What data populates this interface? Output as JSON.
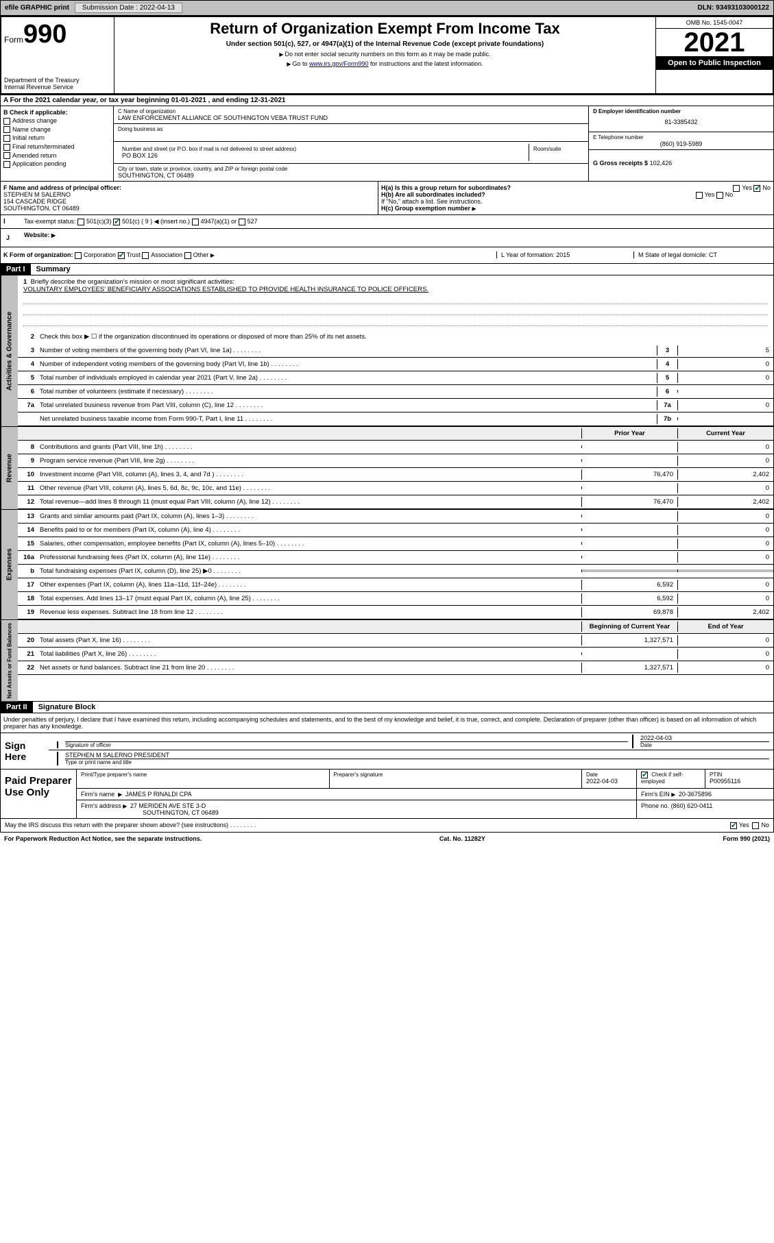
{
  "topbar": {
    "efile": "efile GRAPHIC print",
    "sub_label": "Submission Date : 2022-04-13",
    "dln": "DLN: 93493103000122"
  },
  "header": {
    "form_word": "Form",
    "form_num": "990",
    "title": "Return of Organization Exempt From Income Tax",
    "subtitle": "Under section 501(c), 527, or 4947(a)(1) of the Internal Revenue Code (except private foundations)",
    "note1": "Do not enter social security numbers on this form as it may be made public.",
    "note2_pre": "Go to ",
    "note2_link": "www.irs.gov/Form990",
    "note2_post": " for instructions and the latest information.",
    "dept": "Department of the Treasury",
    "irs": "Internal Revenue Service",
    "omb": "OMB No. 1545-0047",
    "year": "2021",
    "open": "Open to Public Inspection"
  },
  "sectionA": {
    "text": "A For the 2021 calendar year, or tax year beginning 01-01-2021   , and ending 12-31-2021"
  },
  "colB": {
    "heading": "B Check if applicable:",
    "items": [
      "Address change",
      "Name change",
      "Initial return",
      "Final return/terminated",
      "Amended return",
      "Application pending"
    ]
  },
  "colC": {
    "name_label": "C Name of organization",
    "name": "LAW ENFORCEMENT ALLIANCE OF SOUTHINGTON VEBA TRUST FUND",
    "dba_label": "Doing business as",
    "addr_label": "Number and street (or P.O. box if mail is not delivered to street address)",
    "room_label": "Room/suite",
    "addr": "PO BOX 126",
    "city_label": "City or town, state or province, country, and ZIP or foreign postal code",
    "city": "SOUTHINGTON, CT  06489"
  },
  "colD": {
    "ein_label": "D Employer identification number",
    "ein": "81-3385432",
    "phone_label": "E Telephone number",
    "phone": "(860) 919-5989",
    "gross_label": "G Gross receipts $",
    "gross": "102,426"
  },
  "rowF": {
    "label": "F Name and address of principal officer:",
    "name": "STEPHEN M SALERNO",
    "addr1": "154 CASCADE RIDGE",
    "addr2": "SOUTHINGTON, CT  06489"
  },
  "rowH": {
    "ha": "H(a)  Is this a group return for subordinates?",
    "hb": "H(b)  Are all subordinates included?",
    "hb_note": "If \"No,\" attach a list. See instructions.",
    "hc": "H(c)  Group exemption number",
    "yes": "Yes",
    "no": "No"
  },
  "rowI": {
    "label": "Tax-exempt status:",
    "c3": "501(c)(3)",
    "c": "501(c) ( 9 )",
    "c_note": "(insert no.)",
    "a1": "4947(a)(1) or",
    "s527": "527"
  },
  "rowJ": {
    "label": "J",
    "text": "Website:"
  },
  "rowK": {
    "label": "K Form of organization:",
    "opts": [
      "Corporation",
      "Trust",
      "Association",
      "Other"
    ],
    "l": "L Year of formation: 2015",
    "m": "M State of legal domicile: CT"
  },
  "part1": {
    "tag": "Part I",
    "title": "Summary",
    "tab1": "Activities & Governance",
    "tab2": "Revenue",
    "tab3": "Expenses",
    "tab4": "Net Assets or Fund Balances",
    "l1": "Briefly describe the organization's mission or most significant activities:",
    "l1_text": "VOLUNTARY EMPLOYEES' BENEFICIARY ASSOCIATIONS ESTABLISHED TO PROVIDE HEALTH INSURANCE TO POLICE OFFICERS.",
    "l2": "Check this box ▶ ☐  if the organization discontinued its operations or disposed of more than 25% of its net assets.",
    "lines_gov": [
      {
        "n": "3",
        "t": "Number of voting members of the governing body (Part VI, line 1a)",
        "box": "3",
        "v": "5"
      },
      {
        "n": "4",
        "t": "Number of independent voting members of the governing body (Part VI, line 1b)",
        "box": "4",
        "v": "0"
      },
      {
        "n": "5",
        "t": "Total number of individuals employed in calendar year 2021 (Part V, line 2a)",
        "box": "5",
        "v": "0"
      },
      {
        "n": "6",
        "t": "Total number of volunteers (estimate if necessary)",
        "box": "6",
        "v": ""
      },
      {
        "n": "7a",
        "t": "Total unrelated business revenue from Part VIII, column (C), line 12",
        "box": "7a",
        "v": "0"
      },
      {
        "n": "",
        "t": "Net unrelated business taxable income from Form 990-T, Part I, line 11",
        "box": "7b",
        "v": ""
      }
    ],
    "col_prior": "Prior Year",
    "col_current": "Current Year",
    "col_begin": "Beginning of Current Year",
    "col_end": "End of Year",
    "rev": [
      {
        "n": "8",
        "t": "Contributions and grants (Part VIII, line 1h)",
        "p": "",
        "c": "0"
      },
      {
        "n": "9",
        "t": "Program service revenue (Part VIII, line 2g)",
        "p": "",
        "c": "0"
      },
      {
        "n": "10",
        "t": "Investment income (Part VIII, column (A), lines 3, 4, and 7d )",
        "p": "76,470",
        "c": "2,402"
      },
      {
        "n": "11",
        "t": "Other revenue (Part VIII, column (A), lines 5, 6d, 8c, 9c, 10c, and 11e)",
        "p": "",
        "c": "0"
      },
      {
        "n": "12",
        "t": "Total revenue—add lines 8 through 11 (must equal Part VIII, column (A), line 12)",
        "p": "76,470",
        "c": "2,402"
      }
    ],
    "exp": [
      {
        "n": "13",
        "t": "Grants and similar amounts paid (Part IX, column (A), lines 1–3)",
        "p": "",
        "c": "0"
      },
      {
        "n": "14",
        "t": "Benefits paid to or for members (Part IX, column (A), line 4)",
        "p": "",
        "c": "0"
      },
      {
        "n": "15",
        "t": "Salaries, other compensation, employee benefits (Part IX, column (A), lines 5–10)",
        "p": "",
        "c": "0"
      },
      {
        "n": "16a",
        "t": "Professional fundraising fees (Part IX, column (A), line 11e)",
        "p": "",
        "c": "0"
      },
      {
        "n": "b",
        "t": "Total fundraising expenses (Part IX, column (D), line 25) ▶0",
        "p": "shaded",
        "c": "shaded"
      },
      {
        "n": "17",
        "t": "Other expenses (Part IX, column (A), lines 11a–11d, 11f–24e)",
        "p": "6,592",
        "c": "0"
      },
      {
        "n": "18",
        "t": "Total expenses. Add lines 13–17 (must equal Part IX, column (A), line 25)",
        "p": "6,592",
        "c": "0"
      },
      {
        "n": "19",
        "t": "Revenue less expenses. Subtract line 18 from line 12",
        "p": "69,878",
        "c": "2,402"
      }
    ],
    "net": [
      {
        "n": "20",
        "t": "Total assets (Part X, line 16)",
        "p": "1,327,571",
        "c": "0"
      },
      {
        "n": "21",
        "t": "Total liabilities (Part X, line 26)",
        "p": "",
        "c": "0"
      },
      {
        "n": "22",
        "t": "Net assets or fund balances. Subtract line 21 from line 20",
        "p": "1,327,571",
        "c": "0"
      }
    ]
  },
  "part2": {
    "tag": "Part II",
    "title": "Signature Block",
    "intro": "Under penalties of perjury, I declare that I have examined this return, including accompanying schedules and statements, and to the best of my knowledge and belief, it is true, correct, and complete. Declaration of preparer (other than officer) is based on all information of which preparer has any knowledge."
  },
  "sign": {
    "label": "Sign Here",
    "sig_label": "Signature of officer",
    "date_label": "Date",
    "date": "2022-04-03",
    "name": "STEPHEN M SALERNO  PRESIDENT",
    "name_label": "Type or print name and title"
  },
  "paid": {
    "label": "Paid Preparer Use Only",
    "h1": "Print/Type preparer's name",
    "h2": "Preparer's signature",
    "h3": "Date",
    "h3v": "2022-04-03",
    "h4": "Check ☑ if self-employed",
    "h5": "PTIN",
    "h5v": "P00955116",
    "firm_label": "Firm's name",
    "firm": "JAMES P RINALDI CPA",
    "ein_label": "Firm's EIN",
    "ein": "20-3675896",
    "addr_label": "Firm's address",
    "addr1": "27 MERIDEN AVE STE 3-D",
    "addr2": "SOUTHINGTON, CT  06489",
    "phone_label": "Phone no.",
    "phone": "(860) 620-0411"
  },
  "discuss": {
    "text": "May the IRS discuss this return with the preparer shown above? (see instructions)",
    "yes": "Yes",
    "no": "No"
  },
  "footer": {
    "left": "For Paperwork Reduction Act Notice, see the separate instructions.",
    "mid": "Cat. No. 11282Y",
    "right_pre": "Form ",
    "right_bold": "990",
    "right_post": " (2021)"
  }
}
